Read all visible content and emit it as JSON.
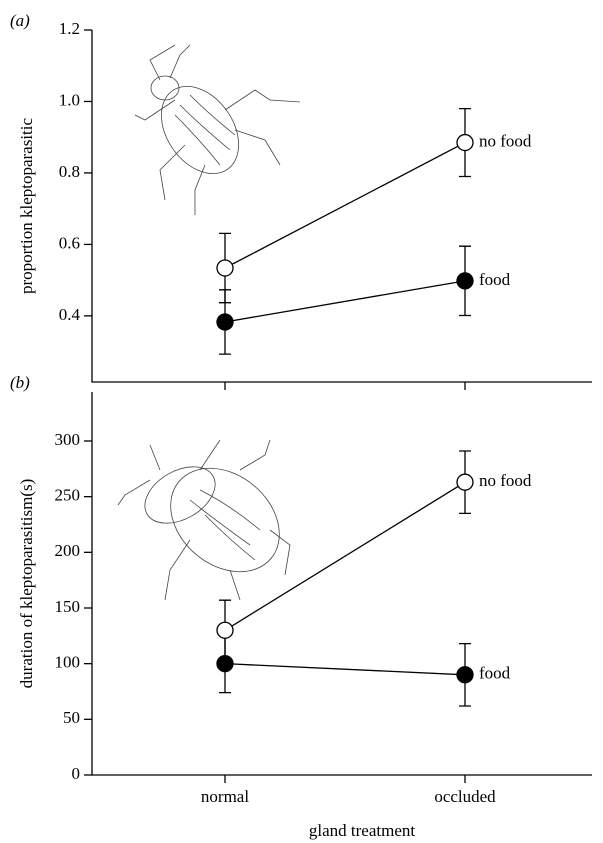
{
  "chart_data": [
    {
      "type": "line",
      "panel_label": "(a)",
      "y_label": "proportion kleptoparasitic",
      "ylim": [
        0.215,
        1.2
      ],
      "yticks": [
        0.4,
        0.6,
        0.8,
        {
          "value": 1,
          "label": "1.0"
        },
        1.2
      ],
      "series": [
        {
          "name": "no food",
          "color": "#ffffff",
          "values": [
            0.534,
            0.885
          ],
          "errors": [
            0.097,
            0.095
          ]
        },
        {
          "name": "food",
          "color": "#000000",
          "values": [
            0.383,
            0.498
          ],
          "errors": [
            0.09,
            0.097
          ]
        }
      ]
    },
    {
      "type": "line",
      "panel_label": "(b)",
      "y_label": "duration of kleptoparasitism(s)",
      "x_label": "gland treatment",
      "categories": [
        "normal",
        "occluded"
      ],
      "ylim": [
        0,
        344
      ],
      "yticks": [
        0,
        50,
        100,
        150,
        200,
        250,
        300
      ],
      "series": [
        {
          "name": "no food",
          "color": "#ffffff",
          "values": [
            130,
            263
          ],
          "errors": [
            27,
            28
          ]
        },
        {
          "name": "food",
          "color": "#000000",
          "values": [
            100,
            90
          ],
          "errors": [
            26,
            28
          ]
        }
      ]
    }
  ]
}
